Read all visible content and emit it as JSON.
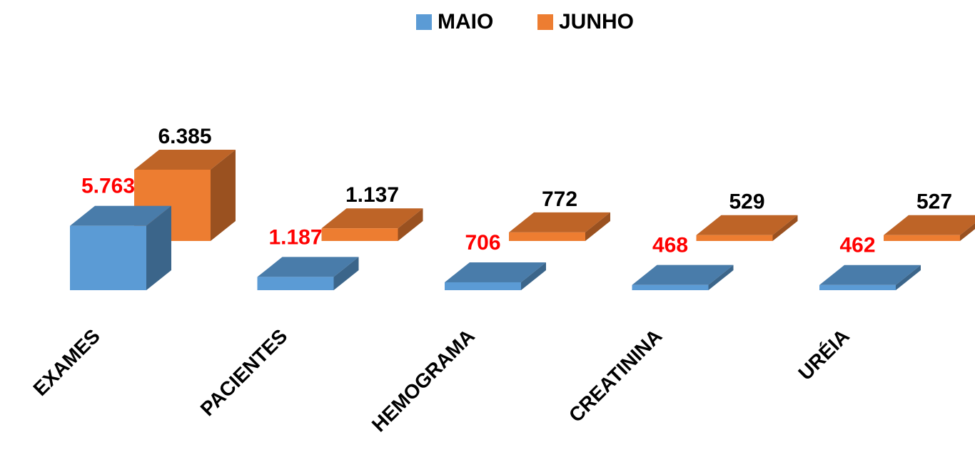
{
  "chart_data": {
    "type": "bar",
    "categories": [
      "EXAMES",
      "PACIENTES",
      "HEMOGRAMA",
      "CREATININA",
      "URÉIA"
    ],
    "series": [
      {
        "name": "MAIO",
        "color": "#5b9bd5",
        "values": [
          5763,
          1187,
          706,
          468,
          462
        ],
        "value_labels": [
          "5.763",
          "1.187",
          "706",
          "468",
          "462"
        ]
      },
      {
        "name": "JUNHO",
        "color": "#ed7d31",
        "values": [
          6385,
          1137,
          772,
          529,
          527
        ],
        "value_labels": [
          "6.385",
          "1.137",
          "772",
          "529",
          "527"
        ]
      }
    ],
    "legend": "top"
  }
}
